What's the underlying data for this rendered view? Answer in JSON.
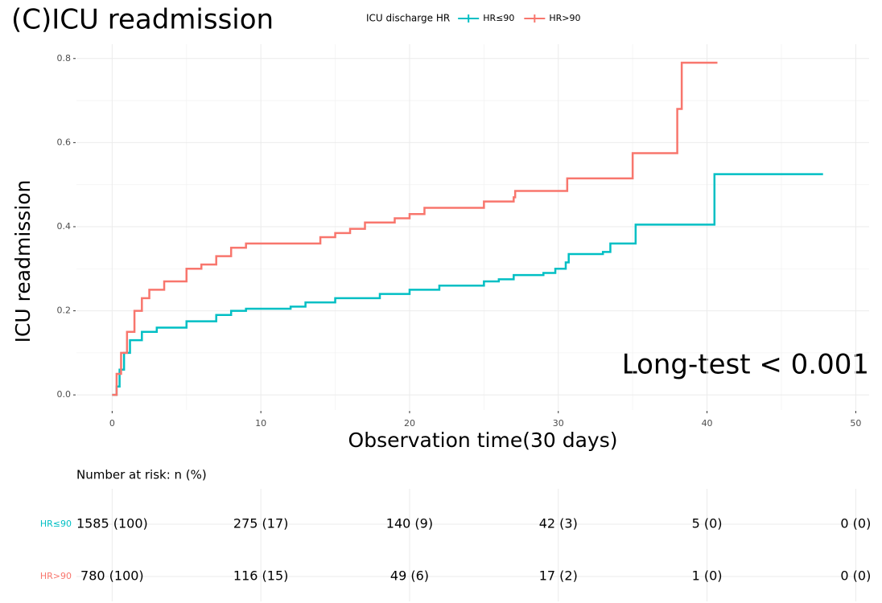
{
  "chart_data": {
    "type": "step",
    "title": "(C)ICU readmission",
    "legend_title": "ICU discharge HR",
    "annotation": "Long-test < 0.001",
    "xlabel": "Observation time(30 days)",
    "ylabel": "ICU readmission",
    "xlim": [
      -2.4,
      50.9
    ],
    "ylim": [
      -0.036,
      0.834
    ],
    "xticks": [
      0,
      10,
      20,
      30,
      40,
      50
    ],
    "yticks": [
      {
        "value": 0,
        "label": "0.0"
      },
      0.2,
      0.4,
      0.6,
      0.8
    ],
    "grid": true,
    "series": [
      {
        "name": "HR≤90",
        "color": "#00BFC4",
        "x": [
          0,
          0.3,
          0.5,
          0.8,
          1.2,
          2,
          3,
          5,
          7,
          8,
          9,
          12,
          13,
          15,
          18,
          20,
          22,
          25,
          26,
          27,
          29,
          29.8,
          30.5,
          30.7,
          33,
          33.5,
          35.2,
          40.5,
          47.8
        ],
        "values": [
          0,
          0.02,
          0.06,
          0.1,
          0.13,
          0.15,
          0.16,
          0.175,
          0.19,
          0.2,
          0.205,
          0.21,
          0.22,
          0.23,
          0.24,
          0.25,
          0.26,
          0.27,
          0.275,
          0.285,
          0.29,
          0.3,
          0.315,
          0.335,
          0.34,
          0.36,
          0.405,
          0.525,
          0.525
        ]
      },
      {
        "name": "HR>90",
        "color": "#F8766D",
        "x": [
          0,
          0.3,
          0.6,
          1,
          1.5,
          2,
          2.5,
          3.5,
          5,
          6,
          7,
          8,
          9,
          12,
          14,
          15,
          16,
          17,
          19,
          20,
          21,
          24,
          25,
          27,
          27.1,
          30.5,
          30.6,
          34.9,
          35,
          37.9,
          38,
          38.3,
          40.7
        ],
        "values": [
          0,
          0.05,
          0.1,
          0.15,
          0.2,
          0.23,
          0.25,
          0.27,
          0.3,
          0.31,
          0.33,
          0.35,
          0.36,
          0.36,
          0.375,
          0.385,
          0.395,
          0.41,
          0.42,
          0.43,
          0.445,
          0.445,
          0.46,
          0.47,
          0.485,
          0.485,
          0.515,
          0.515,
          0.575,
          0.575,
          0.68,
          0.79,
          0.79
        ]
      }
    ],
    "risk_table": {
      "title": "Number at risk: n (%)",
      "times": [
        0,
        10,
        20,
        30,
        40,
        50
      ],
      "rows": [
        {
          "name": "HR≤90",
          "color": "#00BFC4",
          "cells": [
            "1585 (100)",
            "275 (17)",
            "140 (9)",
            "42 (3)",
            "5 (0)",
            "0 (0)"
          ]
        },
        {
          "name": "HR>90",
          "color": "#F8766D",
          "cells": [
            "780 (100)",
            "116 (15)",
            "49 (6)",
            "17 (2)",
            "1 (0)",
            "0 (0)"
          ]
        }
      ]
    }
  }
}
